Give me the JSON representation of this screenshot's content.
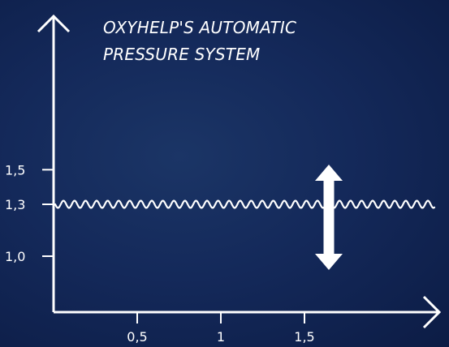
{
  "chart_data": {
    "type": "line",
    "title_lines": [
      "OXYHELP'S  AUTOMATIC",
      "PRESSURE SYSTEM"
    ],
    "xlabel": "",
    "ylabel": "",
    "x_ticks": [
      "0,5",
      "1",
      "1,5"
    ],
    "x_tick_values": [
      0.5,
      1,
      1.5
    ],
    "y_ticks": [
      "1,5",
      "1,3",
      "1,0"
    ],
    "y_tick_values": [
      1.5,
      1.3,
      1.0
    ],
    "series": [
      {
        "x": [
          0,
          2.4
        ],
        "y": [
          1.3,
          1.3
        ],
        "style": "wavy"
      }
    ],
    "annotations": [
      {
        "type": "double-arrow-vertical",
        "x": 1.7,
        "y_top": 1.62,
        "y_bottom": 0.96
      }
    ],
    "colors": {
      "background": "#14295a",
      "foreground": "#ffffff"
    },
    "grid": false
  }
}
